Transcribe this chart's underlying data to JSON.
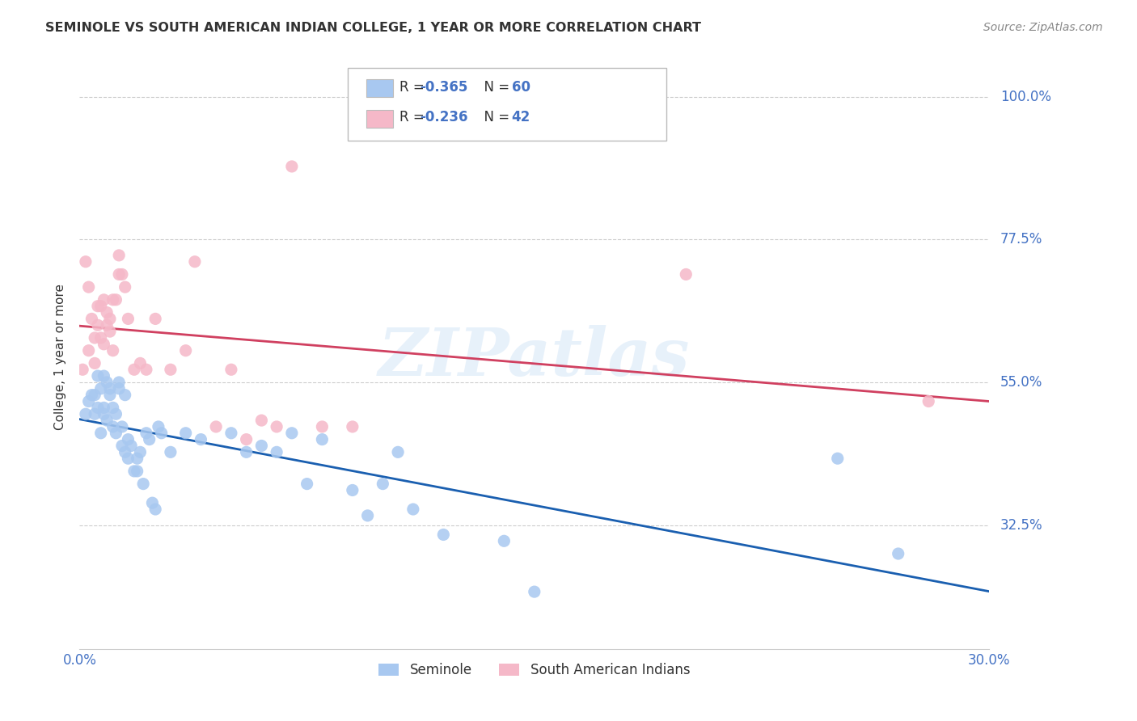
{
  "title": "SEMINOLE VS SOUTH AMERICAN INDIAN COLLEGE, 1 YEAR OR MORE CORRELATION CHART",
  "source": "Source: ZipAtlas.com",
  "ylabel": "College, 1 year or more",
  "ytick_labels": [
    "32.5%",
    "55.0%",
    "77.5%",
    "100.0%"
  ],
  "ytick_values": [
    0.325,
    0.55,
    0.775,
    1.0
  ],
  "xmin": 0.0,
  "xmax": 0.3,
  "ymin": 0.13,
  "ymax": 1.05,
  "watermark": "ZIPatlas",
  "legend_r1": "R = ",
  "legend_v1": "-0.365",
  "legend_n1": "N = ",
  "legend_nv1": "60",
  "legend_r2": "R = ",
  "legend_v2": "-0.236",
  "legend_n2": "N = ",
  "legend_nv2": "42",
  "blue_scatter_color": "#A8C8F0",
  "pink_scatter_color": "#F5B8C8",
  "blue_line_color": "#1A5FB0",
  "pink_line_color": "#D04060",
  "label_color": "#4472C4",
  "text_color": "#333333",
  "grid_color": "#CCCCCC",
  "legend_text_color": "#333333",
  "legend_value_color": "#4472C4",
  "seminole_x": [
    0.002,
    0.003,
    0.004,
    0.005,
    0.005,
    0.006,
    0.006,
    0.007,
    0.007,
    0.008,
    0.008,
    0.008,
    0.009,
    0.009,
    0.01,
    0.01,
    0.011,
    0.011,
    0.012,
    0.012,
    0.013,
    0.013,
    0.014,
    0.014,
    0.015,
    0.015,
    0.016,
    0.016,
    0.017,
    0.018,
    0.019,
    0.019,
    0.02,
    0.021,
    0.022,
    0.023,
    0.024,
    0.025,
    0.026,
    0.027,
    0.03,
    0.035,
    0.04,
    0.05,
    0.055,
    0.06,
    0.065,
    0.07,
    0.075,
    0.08,
    0.09,
    0.095,
    0.1,
    0.105,
    0.11,
    0.12,
    0.14,
    0.15,
    0.25,
    0.27
  ],
  "seminole_y": [
    0.5,
    0.52,
    0.53,
    0.5,
    0.53,
    0.56,
    0.51,
    0.54,
    0.47,
    0.51,
    0.5,
    0.56,
    0.49,
    0.55,
    0.54,
    0.53,
    0.51,
    0.48,
    0.47,
    0.5,
    0.55,
    0.54,
    0.48,
    0.45,
    0.53,
    0.44,
    0.43,
    0.46,
    0.45,
    0.41,
    0.43,
    0.41,
    0.44,
    0.39,
    0.47,
    0.46,
    0.36,
    0.35,
    0.48,
    0.47,
    0.44,
    0.47,
    0.46,
    0.47,
    0.44,
    0.45,
    0.44,
    0.47,
    0.39,
    0.46,
    0.38,
    0.34,
    0.39,
    0.44,
    0.35,
    0.31,
    0.3,
    0.22,
    0.43,
    0.28
  ],
  "sa_x": [
    0.001,
    0.002,
    0.003,
    0.003,
    0.004,
    0.005,
    0.005,
    0.006,
    0.006,
    0.007,
    0.007,
    0.008,
    0.008,
    0.009,
    0.009,
    0.01,
    0.01,
    0.011,
    0.011,
    0.012,
    0.013,
    0.013,
    0.014,
    0.015,
    0.016,
    0.018,
    0.02,
    0.022,
    0.025,
    0.03,
    0.035,
    0.038,
    0.045,
    0.05,
    0.055,
    0.06,
    0.065,
    0.07,
    0.08,
    0.09,
    0.2,
    0.28
  ],
  "sa_y": [
    0.57,
    0.74,
    0.6,
    0.7,
    0.65,
    0.62,
    0.58,
    0.64,
    0.67,
    0.67,
    0.62,
    0.68,
    0.61,
    0.66,
    0.64,
    0.65,
    0.63,
    0.68,
    0.6,
    0.68,
    0.72,
    0.75,
    0.72,
    0.7,
    0.65,
    0.57,
    0.58,
    0.57,
    0.65,
    0.57,
    0.6,
    0.74,
    0.48,
    0.57,
    0.46,
    0.49,
    0.48,
    0.89,
    0.48,
    0.48,
    0.72,
    0.52
  ]
}
